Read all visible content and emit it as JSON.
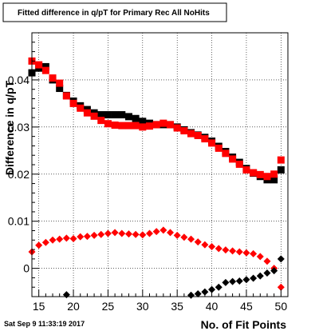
{
  "chart_data": {
    "type": "scatter",
    "title": "Fitted difference in q/pT for Primary Rec All NoHits",
    "xlabel": "No. of Fit Points",
    "ylabel": "Difference in q/pT",
    "xlim": [
      14,
      51
    ],
    "ylim": [
      -0.006,
      0.05
    ],
    "x_ticks": [
      15,
      20,
      25,
      30,
      35,
      40,
      45,
      50
    ],
    "y_ticks": [
      0,
      0.01,
      0.02,
      0.03,
      0.04
    ],
    "y_tick_labels": [
      "0",
      "0.01",
      "0.02",
      "0.03",
      "0.04"
    ],
    "grid": true,
    "x": [
      14,
      15,
      16,
      17,
      18,
      19,
      20,
      21,
      22,
      23,
      24,
      25,
      26,
      27,
      28,
      29,
      30,
      31,
      32,
      33,
      34,
      35,
      36,
      37,
      38,
      39,
      40,
      41,
      42,
      43,
      44,
      45,
      46,
      47,
      48,
      49,
      50
    ],
    "series": [
      {
        "marker": "square",
        "color": "#000000",
        "values": [
          0.0415,
          0.0425,
          0.0428,
          0.04,
          0.0382,
          0.0367,
          0.0355,
          0.0345,
          0.0337,
          0.033,
          0.0326,
          0.0326,
          0.0326,
          0.0326,
          0.0322,
          0.0318,
          0.0312,
          0.0308,
          0.0305,
          0.0305,
          0.0305,
          0.03,
          0.0294,
          0.0288,
          0.0283,
          0.0278,
          0.027,
          0.0259,
          0.0248,
          0.0236,
          0.0225,
          0.0212,
          0.0202,
          0.0195,
          0.0188,
          0.0188,
          0.0209
        ]
      },
      {
        "marker": "square",
        "color": "#ff0000",
        "values": [
          0.044,
          0.0432,
          0.042,
          0.0404,
          0.0393,
          0.0366,
          0.035,
          0.034,
          0.033,
          0.0323,
          0.0314,
          0.0307,
          0.0304,
          0.0303,
          0.0303,
          0.0303,
          0.03,
          0.0302,
          0.0305,
          0.0308,
          0.0305,
          0.0298,
          0.0292,
          0.0286,
          0.0282,
          0.0275,
          0.0266,
          0.0255,
          0.0244,
          0.0232,
          0.0221,
          0.0209,
          0.0203,
          0.0199,
          0.0195,
          0.02,
          0.023
        ]
      },
      {
        "marker": "diamond",
        "color": "#ff0000",
        "values": [
          0.0035,
          0.0049,
          0.0055,
          0.006,
          0.0062,
          0.0064,
          0.0063,
          0.0067,
          0.0068,
          0.007,
          0.0072,
          0.0074,
          0.0076,
          0.0074,
          0.0073,
          0.0072,
          0.0071,
          0.0074,
          0.0078,
          0.0081,
          0.0076,
          0.007,
          0.0066,
          0.0062,
          0.0056,
          0.005,
          0.0046,
          0.0042,
          0.0039,
          0.0037,
          0.0035,
          0.0033,
          0.0031,
          0.0025,
          0.0015,
          0.0,
          -0.004
        ]
      },
      {
        "marker": "diamond",
        "color": "#000000",
        "values": [
          null,
          null,
          null,
          null,
          null,
          -0.0056,
          null,
          null,
          null,
          null,
          null,
          null,
          null,
          null,
          null,
          null,
          null,
          null,
          null,
          null,
          null,
          null,
          null,
          -0.0057,
          -0.0054,
          -0.005,
          -0.0045,
          -0.004,
          -0.003,
          -0.0028,
          -0.0027,
          -0.0024,
          -0.0021,
          -0.0016,
          -0.001,
          -0.0005,
          0.002
        ]
      }
    ]
  },
  "footer": {
    "timestamp": "Sat Sep  9 11:33:19 2017"
  }
}
